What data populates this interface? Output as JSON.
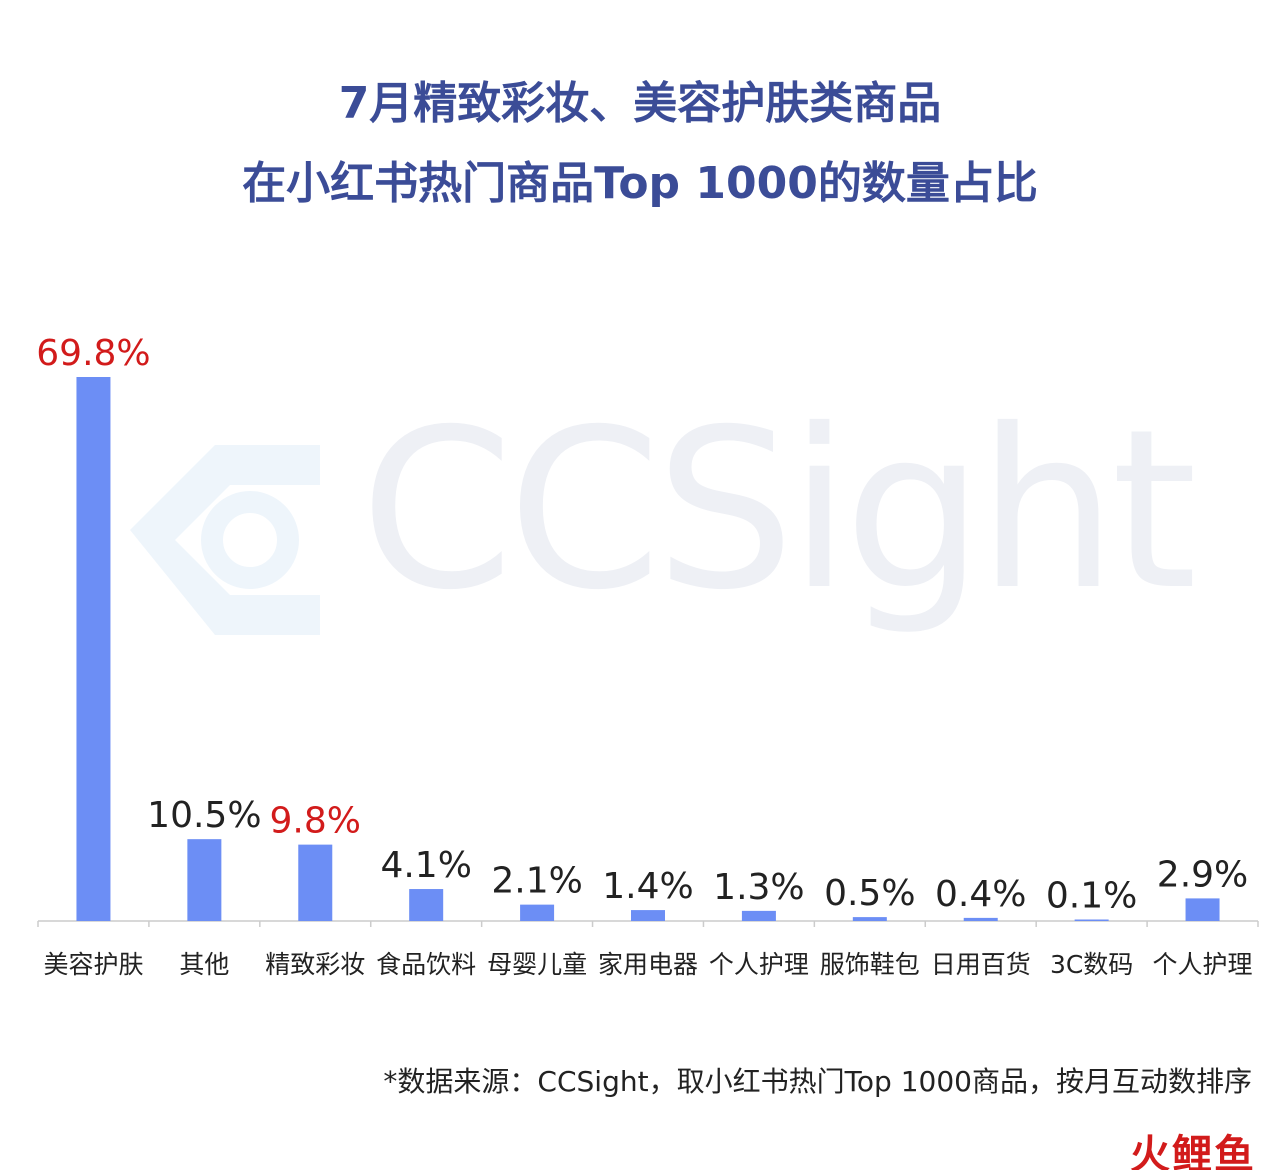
{
  "title_lines": [
    "7月精致彩妆、美容护肤类商品",
    "在小红书热门商品Top 1000的数量占比"
  ],
  "colors": {
    "title": "#3b4c97",
    "bar": "#6c8ef5",
    "highlight_label": "#d21b1b",
    "normal_label": "#222222",
    "axis": "#cccccc",
    "watermark": "#eef0f5"
  },
  "watermark": {
    "text": "CCSight"
  },
  "chart_data": {
    "type": "bar",
    "categories": [
      "美容护肤",
      "其他",
      "精致彩妆",
      "食品饮料",
      "母婴儿童",
      "家用电器",
      "个人护理",
      "服饰鞋包",
      "日用百货",
      "3C数码",
      "个人护理"
    ],
    "values": [
      69.8,
      10.5,
      9.8,
      4.1,
      2.1,
      1.4,
      1.3,
      0.5,
      0.4,
      0.1,
      2.9
    ],
    "value_labels": [
      "69.8%",
      "10.5%",
      "9.8%",
      "4.1%",
      "2.1%",
      "1.4%",
      "1.3%",
      "0.5%",
      "0.4%",
      "0.1%",
      "2.9%"
    ],
    "highlighted": [
      true,
      false,
      true,
      false,
      false,
      false,
      false,
      false,
      false,
      false,
      false
    ],
    "unit": "%",
    "ylim": [
      0,
      69.8
    ],
    "grid": false,
    "legend": "none"
  },
  "source_note": "*数据来源：CCSight，取小红书热门Top 1000商品，按月互动数排序",
  "corner_logo": {
    "text": "火鲤鱼"
  }
}
